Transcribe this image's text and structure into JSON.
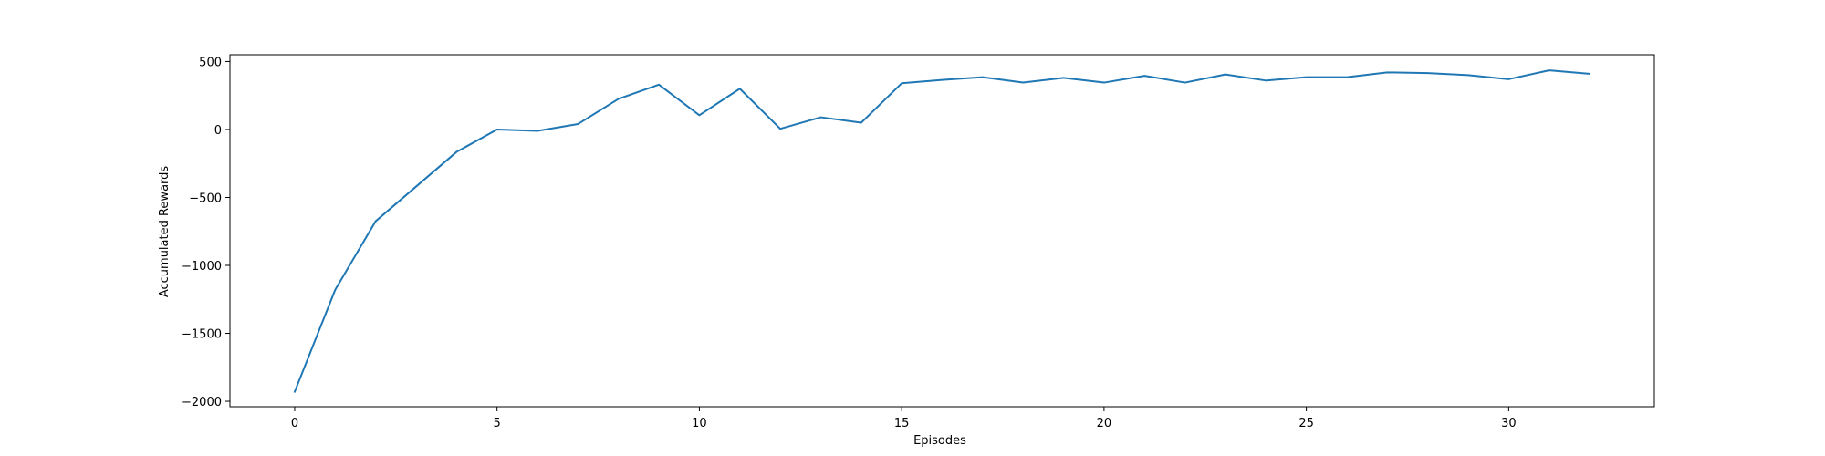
{
  "chart_data": {
    "type": "line",
    "title": "",
    "xlabel": "Episodes",
    "ylabel": "Accumulated Rewards",
    "xlim": [
      -1.6,
      33.6
    ],
    "ylim": [
      -2040,
      550
    ],
    "xticks": [
      0,
      5,
      10,
      15,
      20,
      25,
      30
    ],
    "yticks": [
      500,
      0,
      -500,
      -1000,
      -1500,
      -2000
    ],
    "xtick_labels": [
      "0",
      "5",
      "10",
      "15",
      "20",
      "25",
      "30"
    ],
    "ytick_labels": [
      "500",
      "0",
      "−500",
      "−1000",
      "−1500",
      "−2000"
    ],
    "grid": false,
    "legend": false,
    "series": [
      {
        "color": "#1f77b4",
        "x": [
          0,
          1,
          2,
          3,
          4,
          5,
          6,
          7,
          8,
          9,
          10,
          11,
          12,
          13,
          14,
          15,
          16,
          17,
          18,
          19,
          20,
          21,
          22,
          23,
          24,
          25,
          26,
          27,
          28,
          29,
          30,
          31,
          32
        ],
        "values": [
          -1930,
          -1180,
          -675,
          -420,
          -165,
          0,
          -10,
          40,
          225,
          330,
          105,
          300,
          5,
          90,
          50,
          340,
          365,
          385,
          345,
          380,
          345,
          395,
          345,
          405,
          360,
          385,
          385,
          420,
          415,
          400,
          370,
          435,
          410
        ]
      }
    ]
  }
}
